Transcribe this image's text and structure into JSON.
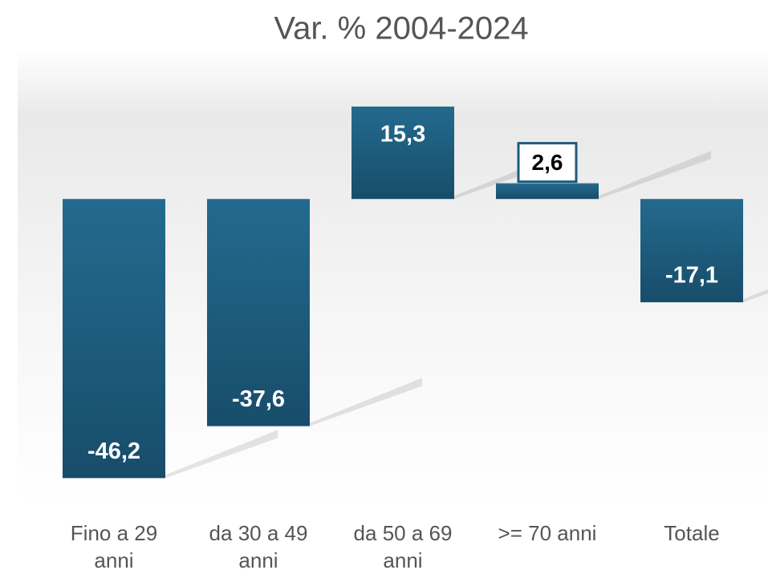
{
  "chart_data": {
    "type": "bar",
    "title": "Var. % 2004-2024",
    "categories": [
      "Fino a 29 anni",
      "da 30 a 49 anni",
      "da 50 a 69 anni",
      ">= 70 anni",
      "Totale"
    ],
    "values": [
      -46.2,
      -37.6,
      15.3,
      2.6,
      -17.1
    ],
    "value_labels": [
      "-46,2",
      "-37,6",
      "15,3",
      "2,6",
      "-17,1"
    ],
    "color": "#1d5c7e",
    "ylim": [
      -50,
      20
    ]
  }
}
